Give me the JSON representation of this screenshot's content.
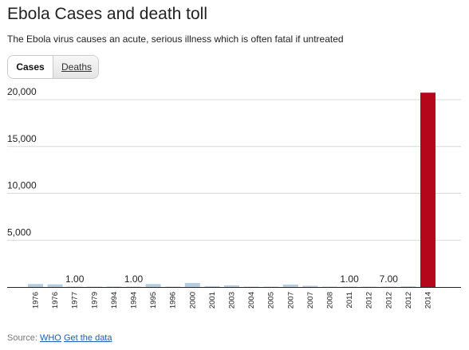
{
  "header": {
    "title": "Ebola Cases and death toll",
    "subtitle": "The Ebola virus causes an acute, serious illness which is often fatal if untreated"
  },
  "tabs": [
    {
      "label": "Cases",
      "active": true
    },
    {
      "label": "Deaths",
      "active": false
    }
  ],
  "footer": {
    "source_prefix": "Source:",
    "source_link": "WHO",
    "data_link": "Get the data"
  },
  "colors": {
    "bar_default": "#b3cde3",
    "bar_highlight": "#b5071b",
    "gridline": "#d8d8d8",
    "axis": "#222222",
    "link": "#1a5fb4"
  },
  "chart_data": {
    "type": "bar",
    "categories": [
      "1976",
      "1976",
      "1977",
      "1979",
      "1994",
      "1994",
      "1995",
      "1996",
      "2000",
      "2001",
      "2003",
      "2004",
      "2005",
      "2007",
      "2007",
      "2008",
      "2011",
      "2012",
      "2012",
      "2012",
      "2014"
    ],
    "values": [
      318,
      284,
      1,
      2,
      52,
      1,
      315,
      37,
      425,
      93,
      178,
      17,
      12,
      264,
      131,
      32,
      1,
      11,
      7,
      70,
      20747
    ],
    "data_labels": [
      "",
      "",
      "1.00",
      "",
      "",
      "1.00",
      "",
      "",
      "",
      "",
      "",
      "",
      "",
      "",
      "",
      "",
      "1.00",
      "",
      "7.00",
      "",
      ""
    ],
    "highlight_index": 20,
    "title": "",
    "xlabel": "",
    "ylabel": "",
    "y_ticks": [
      "5,000",
      "10,000",
      "15,000",
      "20,000"
    ],
    "ylim": [
      0,
      20000
    ],
    "grid": true,
    "legend": "none"
  }
}
